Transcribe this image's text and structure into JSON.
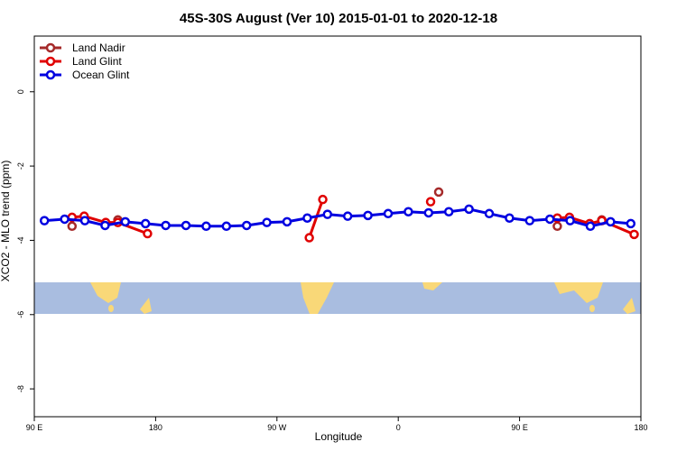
{
  "chart_data": {
    "type": "line",
    "title": "45S-30S August (Ver 10)   2015-01-01 to 2020-12-18",
    "x_label": "Longitude",
    "y_label": "XCO2 - MLO trend (ppm)",
    "xlim": [
      90,
      540
    ],
    "xticks": [
      {
        "value": 90,
        "label": "90 E"
      },
      180,
      {
        "value": 270,
        "label": "90 W"
      },
      {
        "value": 360,
        "label": "0"
      },
      {
        "value": 450,
        "label": "90 E"
      },
      {
        "value": 540,
        "label": "180"
      }
    ],
    "ylim": [
      -8.75,
      1.5
    ],
    "yticks": [
      0,
      -2,
      -4,
      -6,
      -8
    ],
    "legend": "top-left",
    "series": [
      {
        "name": "Land Nadir",
        "color": "#a52a2a",
        "x": [
          118,
          null,
          152,
          null,
          390,
          null,
          478,
          null,
          511
        ],
        "values": [
          -3.62,
          null,
          -3.45,
          null,
          -2.7,
          null,
          -3.62,
          null,
          -3.45
        ]
      },
      {
        "name": "Land Glint",
        "color": "#e00000",
        "x": [
          118,
          127,
          143,
          152,
          174,
          null,
          294,
          304,
          null,
          384,
          null,
          478,
          487,
          502,
          511,
          535
        ],
        "values": [
          -3.38,
          -3.35,
          -3.52,
          -3.52,
          -3.82,
          null,
          -3.93,
          -2.9,
          null,
          -2.96,
          null,
          -3.4,
          -3.38,
          -3.55,
          -3.47,
          -3.84
        ]
      },
      {
        "name": "Ocean Glint",
        "color": "#0000e0",
        "x": [
          97.5,
          112.5,
          127.5,
          142.5,
          157.5,
          172.5,
          187.5,
          202.5,
          217.5,
          232.5,
          247.5,
          262.5,
          277.5,
          292.5,
          307.5,
          322.5,
          337.5,
          352.5,
          367.5,
          382.5,
          397.5,
          412.5,
          427.5,
          442.5,
          457.5,
          472.5,
          487.5,
          502.5,
          517.5,
          532.5
        ],
        "values": [
          -3.47,
          -3.43,
          -3.47,
          -3.6,
          -3.5,
          -3.55,
          -3.6,
          -3.6,
          -3.62,
          -3.62,
          -3.6,
          -3.52,
          -3.5,
          -3.4,
          -3.3,
          -3.35,
          -3.33,
          -3.28,
          -3.23,
          -3.26,
          -3.23,
          -3.16,
          -3.28,
          -3.4,
          -3.47,
          -3.43,
          -3.47,
          -3.62,
          -3.5,
          -3.55
        ]
      }
    ]
  }
}
